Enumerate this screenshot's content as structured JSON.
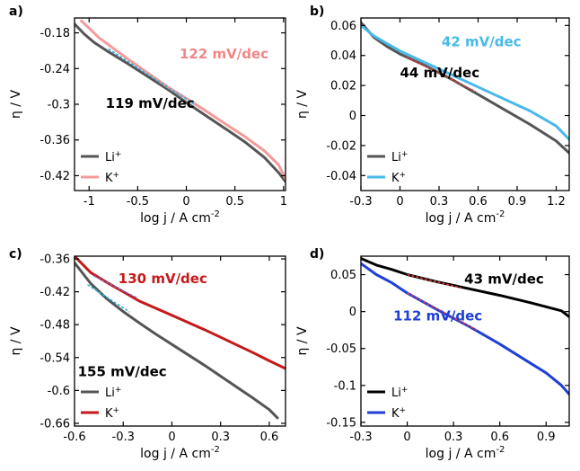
{
  "chart_data": [
    {
      "panel": "a)",
      "type": "line",
      "xlabel": "log j / A cm",
      "xlabel_sup": "-2",
      "ylabel": "η / V",
      "xlim": [
        -1.15,
        1.02
      ],
      "ylim": [
        -0.445,
        -0.155
      ],
      "xticks": [
        -1,
        -0.5,
        0,
        0.5,
        1
      ],
      "xtick_labels": [
        "-1",
        "-0.5",
        "0",
        "0.5",
        "1"
      ],
      "yticks": [
        -0.18,
        -0.24,
        -0.3,
        -0.36,
        -0.42
      ],
      "ytick_labels": [
        "-0.18",
        "-0.24",
        "-0.3",
        "-0.36",
        "-0.42"
      ],
      "legend_position": "bottom-left",
      "series": [
        {
          "name": "Li",
          "name_sup": "+",
          "color": "#555555",
          "x": [
            -1.15,
            -1.05,
            -0.95,
            -0.8,
            -0.6,
            -0.4,
            -0.2,
            0.0,
            0.2,
            0.4,
            0.6,
            0.8,
            0.95,
            1.02
          ],
          "y": [
            -0.165,
            -0.182,
            -0.196,
            -0.212,
            -0.232,
            -0.253,
            -0.274,
            -0.297,
            -0.319,
            -0.341,
            -0.363,
            -0.389,
            -0.415,
            -0.43
          ]
        },
        {
          "name": "K",
          "name_sup": "+",
          "color": "#f49a9a",
          "x": [
            -1.08,
            -1.0,
            -0.9,
            -0.75,
            -0.6,
            -0.4,
            -0.2,
            0.0,
            0.2,
            0.4,
            0.6,
            0.8,
            0.95,
            1.02
          ],
          "y": [
            -0.16,
            -0.172,
            -0.188,
            -0.206,
            -0.224,
            -0.247,
            -0.27,
            -0.29,
            -0.311,
            -0.333,
            -0.354,
            -0.378,
            -0.402,
            -0.425
          ]
        }
      ],
      "fits": [
        {
          "color": "#2bb3e6",
          "x": [
            -0.8,
            0.1
          ],
          "y": [
            -0.207,
            -0.302
          ]
        }
      ],
      "annotations": [
        {
          "text": "122 mV/dec",
          "color": "#f28787",
          "x": -0.07,
          "y": -0.223
        },
        {
          "text": "119 mV/dec",
          "color": "#000000",
          "x": -0.83,
          "y": -0.306
        }
      ]
    },
    {
      "panel": "b)",
      "type": "line",
      "xlabel": "log j / A cm",
      "xlabel_sup": "-2",
      "ylabel": "η / V",
      "xlim": [
        -0.3,
        1.3
      ],
      "ylim": [
        -0.05,
        0.065
      ],
      "xticks": [
        -0.3,
        0,
        0.3,
        0.6,
        0.9,
        1.2
      ],
      "xtick_labels": [
        "-0.3",
        "0",
        "0.3",
        "0.6",
        "0.9",
        "1.2"
      ],
      "yticks": [
        0.06,
        0.04,
        0.02,
        0,
        -0.02,
        -0.04
      ],
      "ytick_labels": [
        "0.06",
        "0.04",
        "0.02",
        "0",
        "-0.02",
        "-0.04"
      ],
      "legend_position": "bottom-left",
      "series": [
        {
          "name": "Li",
          "name_sup": "+",
          "color": "#555555",
          "x": [
            -0.3,
            -0.2,
            -0.1,
            0.0,
            0.2,
            0.4,
            0.6,
            0.8,
            1.0,
            1.2,
            1.3
          ],
          "y": [
            0.062,
            0.052,
            0.046,
            0.041,
            0.033,
            0.024,
            0.014,
            0.004,
            -0.006,
            -0.017,
            -0.025
          ]
        },
        {
          "name": "K",
          "name_sup": "+",
          "color": "#47b9ea",
          "x": [
            -0.3,
            -0.2,
            -0.1,
            0.0,
            0.2,
            0.4,
            0.6,
            0.8,
            1.0,
            1.2,
            1.3
          ],
          "y": [
            0.06,
            0.053,
            0.048,
            0.043,
            0.035,
            0.027,
            0.019,
            0.011,
            0.003,
            -0.007,
            -0.016
          ]
        }
      ],
      "fits": [
        {
          "color": "#e03a3a",
          "x": [
            0.05,
            0.58
          ],
          "y": [
            0.039,
            0.016
          ]
        }
      ],
      "annotations": [
        {
          "text": "42 mV/dec",
          "color": "#47b9ea",
          "x": 0.32,
          "y": 0.046
        },
        {
          "text": "44 mV/dec",
          "color": "#000000",
          "x": 0.0,
          "y": 0.0255
        }
      ]
    },
    {
      "panel": "c)",
      "type": "line",
      "xlabel": "log j / A cm",
      "xlabel_sup": "-2",
      "ylabel": "η / V",
      "xlim": [
        -0.6,
        0.7
      ],
      "ylim": [
        -0.665,
        -0.355
      ],
      "xticks": [
        -0.6,
        -0.3,
        0,
        0.3,
        0.6
      ],
      "xtick_labels": [
        "-0.6",
        "-0.3",
        "0",
        "0.3",
        "0.6"
      ],
      "yticks": [
        -0.36,
        -0.42,
        -0.48,
        -0.54,
        -0.6,
        -0.66
      ],
      "ytick_labels": [
        "-0.36",
        "-0.42",
        "-0.48",
        "-0.54",
        "-0.6",
        "-0.66"
      ],
      "legend_position": "bottom-left",
      "series": [
        {
          "name": "Li",
          "name_sup": "+",
          "color": "#555555",
          "x": [
            -0.6,
            -0.5,
            -0.4,
            -0.3,
            -0.2,
            -0.1,
            0.0,
            0.1,
            0.2,
            0.3,
            0.4,
            0.5,
            0.6,
            0.65
          ],
          "y": [
            -0.367,
            -0.405,
            -0.433,
            -0.456,
            -0.477,
            -0.497,
            -0.516,
            -0.535,
            -0.554,
            -0.574,
            -0.594,
            -0.614,
            -0.635,
            -0.65
          ]
        },
        {
          "name": "K",
          "name_sup": "+",
          "color": "#c41a1a",
          "x": [
            -0.6,
            -0.5,
            -0.4,
            -0.3,
            -0.2,
            -0.1,
            0.0,
            0.1,
            0.2,
            0.3,
            0.4,
            0.5,
            0.6,
            0.7
          ],
          "y": [
            -0.355,
            -0.385,
            -0.403,
            -0.42,
            -0.437,
            -0.45,
            -0.463,
            -0.476,
            -0.489,
            -0.503,
            -0.517,
            -0.531,
            -0.546,
            -0.56
          ]
        }
      ],
      "fits": [
        {
          "color": "#7a66c9",
          "x": [
            -0.48,
            -0.21
          ],
          "y": [
            -0.391,
            -0.432
          ]
        },
        {
          "color": "#2bb3e6",
          "x": [
            -0.52,
            -0.26
          ],
          "y": [
            -0.407,
            -0.457
          ]
        }
      ],
      "annotations": [
        {
          "text": "130 mV/dec",
          "color": "#c41a1a",
          "x": -0.33,
          "y": -0.404
        },
        {
          "text": "155 mV/dec",
          "color": "#000000",
          "x": -0.58,
          "y": -0.574
        }
      ]
    },
    {
      "panel": "d)",
      "type": "line",
      "xlabel": "log j / A cm",
      "xlabel_sup": "-2",
      "ylabel": "η / V",
      "xlim": [
        -0.3,
        1.05
      ],
      "ylim": [
        -0.155,
        0.075
      ],
      "xticks": [
        -0.3,
        0,
        0.3,
        0.6,
        0.9
      ],
      "xtick_labels": [
        "-0.3",
        "0",
        "0.3",
        "0.6",
        "0.9"
      ],
      "yticks": [
        0.05,
        0,
        -0.05,
        -0.1,
        -0.15
      ],
      "ytick_labels": [
        "0.05",
        "0",
        "-0.05",
        "-0.1",
        "-0.15"
      ],
      "legend_position": "bottom-left",
      "series": [
        {
          "name": "Li",
          "name_sup": "+",
          "color": "#000000",
          "x": [
            -0.3,
            -0.2,
            -0.1,
            0.0,
            0.2,
            0.4,
            0.6,
            0.8,
            1.0,
            1.05
          ],
          "y": [
            0.072,
            0.063,
            0.057,
            0.05,
            0.04,
            0.031,
            0.022,
            0.012,
            0.001,
            -0.007
          ]
        },
        {
          "name": "K",
          "name_sup": "+",
          "color": "#1f3fd6",
          "x": [
            -0.3,
            -0.2,
            -0.1,
            0.0,
            0.2,
            0.4,
            0.6,
            0.8,
            0.9,
            1.0,
            1.05
          ],
          "y": [
            0.065,
            0.05,
            0.039,
            0.025,
            0.002,
            -0.02,
            -0.044,
            -0.07,
            -0.083,
            -0.1,
            -0.112
          ]
        }
      ],
      "fits": [
        {
          "color": "#e03a3a",
          "x": [
            0.0,
            0.35
          ],
          "y": [
            0.05,
            0.032
          ]
        },
        {
          "color": "#e03a3a",
          "x": [
            0.0,
            0.45
          ],
          "y": [
            0.025,
            -0.025
          ]
        }
      ],
      "annotations": [
        {
          "text": "43 mV/dec",
          "color": "#000000",
          "x": 0.37,
          "y": 0.038
        },
        {
          "text": "112 mV/dec",
          "color": "#1f3fd6",
          "x": -0.09,
          "y": -0.012
        }
      ]
    }
  ]
}
